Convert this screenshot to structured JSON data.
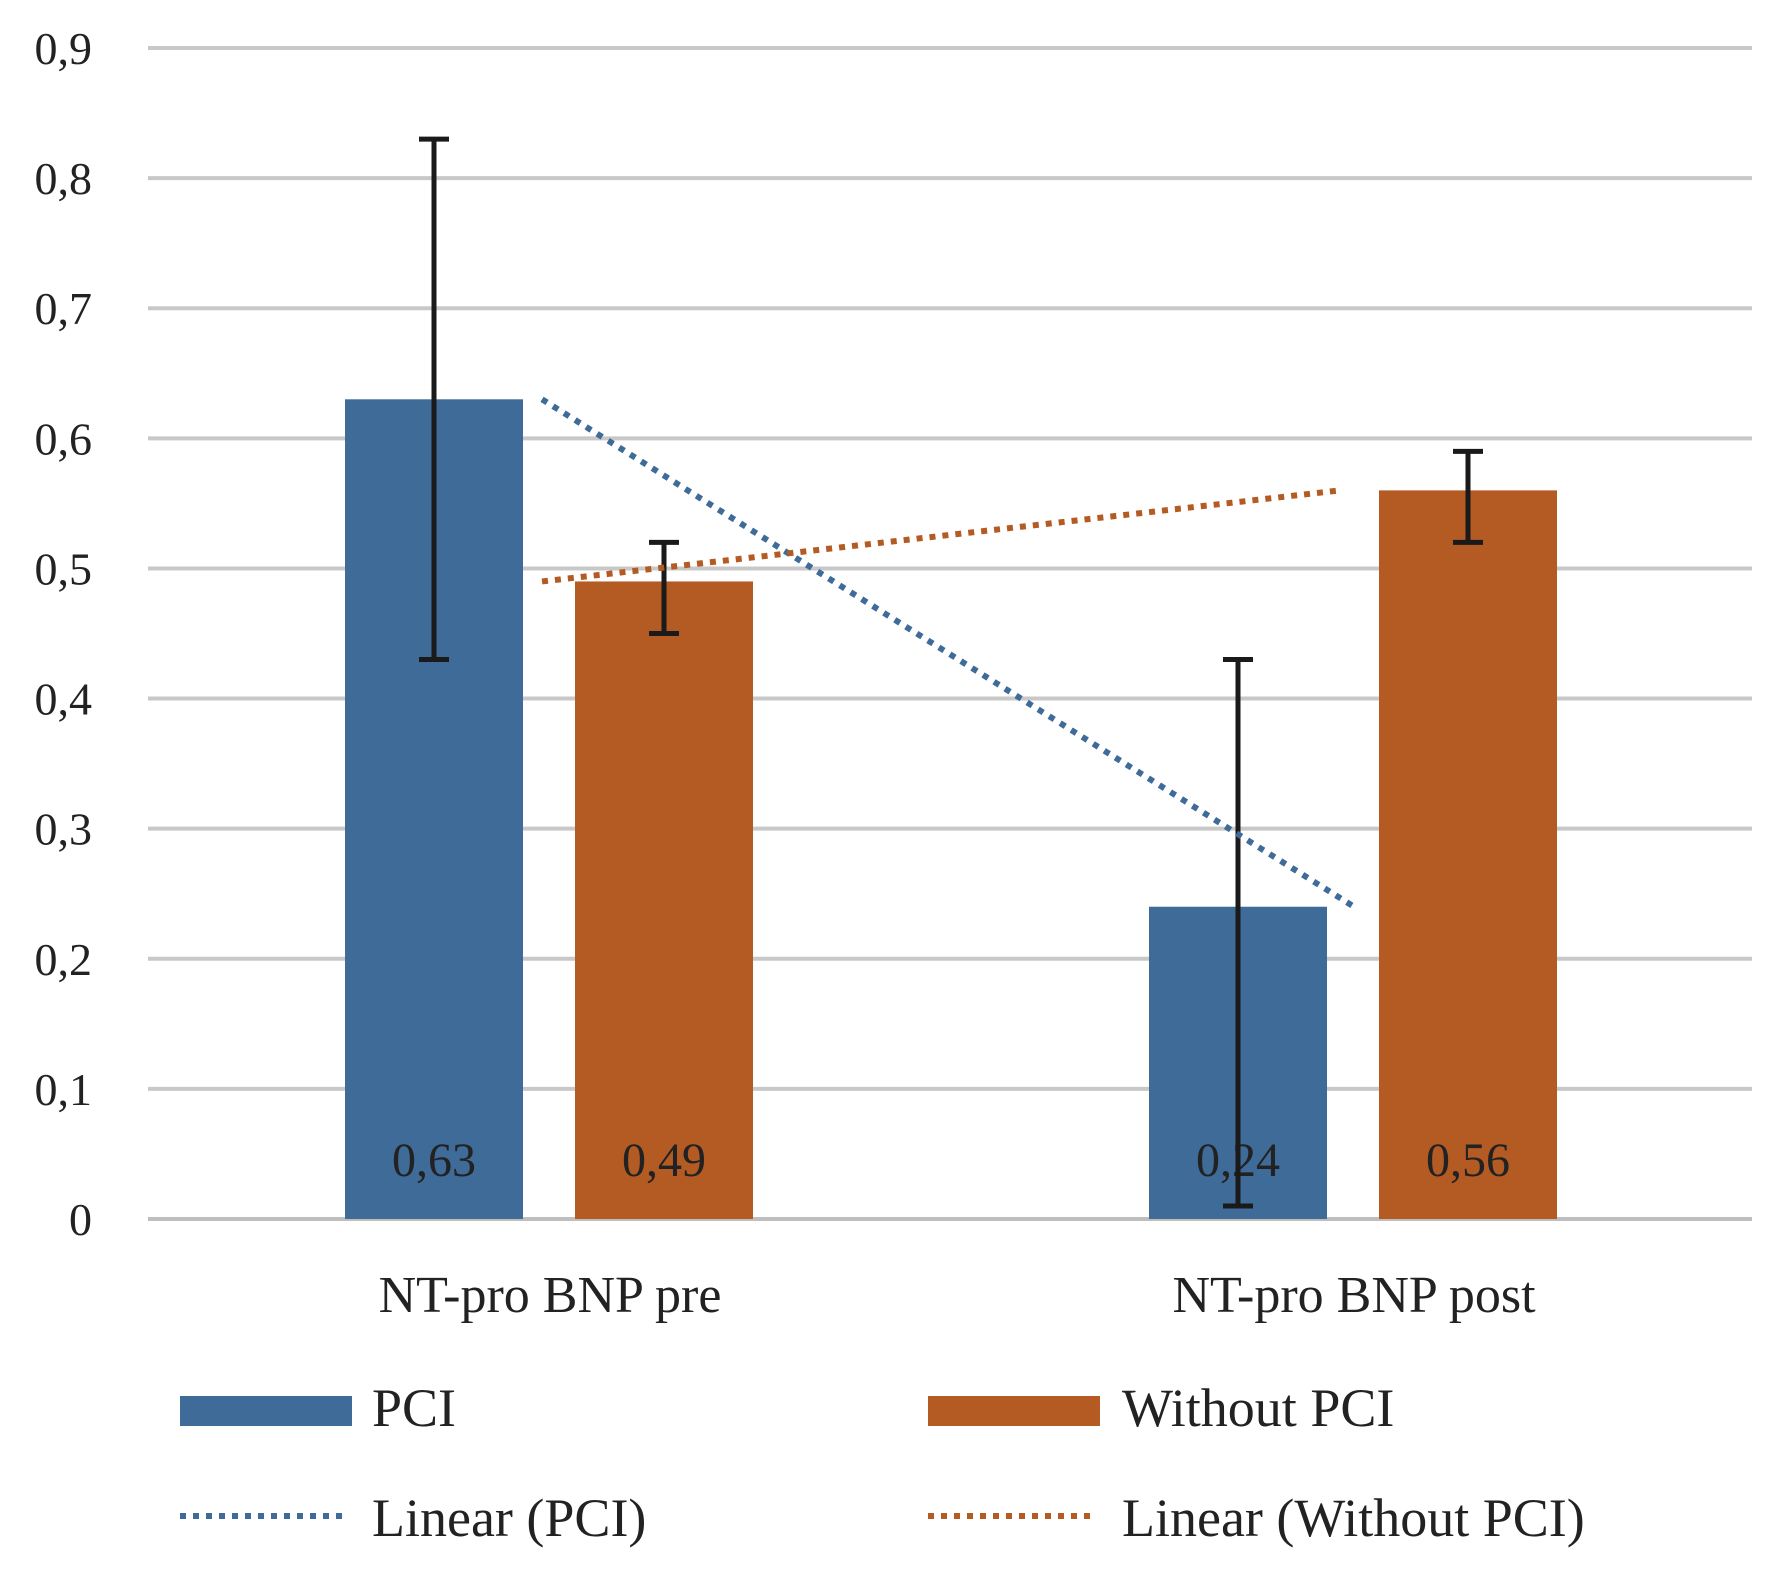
{
  "chart_data": {
    "type": "bar",
    "categories": [
      "NT-pro BNP pre",
      "NT-pro BNP post"
    ],
    "series": [
      {
        "name": "PCI",
        "values": [
          0.63,
          0.24
        ],
        "error": [
          [
            0.43,
            0.83
          ],
          [
            0.01,
            0.43
          ]
        ],
        "color": "#3F6B99"
      },
      {
        "name": "Without PCI",
        "values": [
          0.49,
          0.56
        ],
        "error": [
          [
            0.45,
            0.52
          ],
          [
            0.52,
            0.59
          ]
        ],
        "color": "#B45B24"
      }
    ],
    "data_labels": [
      "0,63",
      "0,24",
      "0,49",
      "0,56"
    ],
    "trendlines": [
      {
        "name": "Linear (PCI)",
        "series": "PCI",
        "start": 0.63,
        "end": 0.24,
        "color": "#3F6B99"
      },
      {
        "name": "Linear (Without PCI)",
        "series": "Without PCI",
        "start": 0.49,
        "end": 0.56,
        "color": "#B45B24"
      }
    ],
    "y_ticks": [
      "0",
      "0,1",
      "0,2",
      "0,3",
      "0,4",
      "0,5",
      "0,6",
      "0,7",
      "0,8",
      "0,9"
    ],
    "ylim": [
      0,
      0.9
    ],
    "grid": true,
    "legend_position": "bottom",
    "legend": [
      "PCI",
      "Without PCI",
      "Linear (PCI)",
      "Linear (Without PCI)"
    ],
    "title": "",
    "xlabel": "",
    "ylabel": ""
  }
}
